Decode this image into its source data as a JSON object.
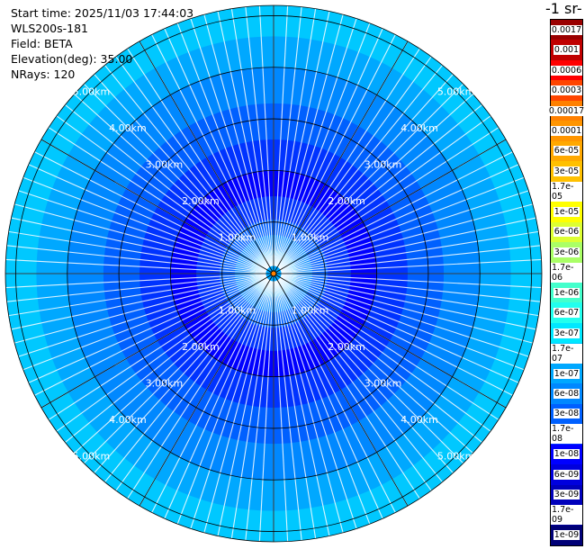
{
  "info": {
    "start_time": "Start time: 2025/11/03 17:44:03",
    "instrument": "WLS200s-181",
    "field": "Field: BETA",
    "elevation": "Elevation(deg): 35.00",
    "nrays": "NRays: 120"
  },
  "colorbar": {
    "unit_label": "-1 sr-",
    "labels": [
      "0.0017",
      "0.001",
      "0.0006",
      "0.0003",
      "0.00017",
      "0.0001",
      "6e-05",
      "3e-05",
      "1.7e-05",
      "1e-05",
      "6e-06",
      "3e-06",
      "1.7e-06",
      "1e-06",
      "6e-07",
      "3e-07",
      "1.7e-07",
      "1e-07",
      "6e-08",
      "3e-08",
      "1.7e-08",
      "1e-08",
      "6e-09",
      "3e-09",
      "1.7e-09",
      "1e-09"
    ],
    "colors": [
      "#9a0000",
      "#c00000",
      "#ff0000",
      "#ff4500",
      "#ff8000",
      "#ff9500",
      "#ffa800",
      "#ffc000",
      "#ffe000",
      "#ffff00",
      "#ddff33",
      "#aaff66",
      "#77ff99",
      "#44ffcc",
      "#22ffee",
      "#00e8ff",
      "#00c8ff",
      "#00a8ff",
      "#0088ff",
      "#0060ff",
      "#0033ff",
      "#0000ff",
      "#0000dd",
      "#0000bb",
      "#000099",
      "#000077"
    ]
  },
  "chart_data": {
    "type": "heatmap",
    "projection": "polar",
    "field": "BETA",
    "elevation_deg": 35.0,
    "nrays": 120,
    "range_rings_km": [
      1.0,
      2.0,
      3.0,
      4.0,
      5.0
    ],
    "ring_labels": [
      "1.00km",
      "2.00km",
      "3.00km",
      "4.00km",
      "5.00km"
    ],
    "max_range_km": 5.2,
    "azimuth_lines_deg": [
      0,
      30,
      60,
      90,
      120,
      150,
      180,
      210,
      240,
      270,
      300,
      330
    ],
    "bands": [
      {
        "r0_km": 0.0,
        "r1_km": 0.45,
        "beta": 1e-07
      },
      {
        "r0_km": 0.45,
        "r1_km": 0.75,
        "beta": 6e-08
      },
      {
        "r0_km": 0.75,
        "r1_km": 1.05,
        "beta": 4e-08
      },
      {
        "r0_km": 1.05,
        "r1_km": 1.5,
        "beta": 2e-08
      },
      {
        "r0_km": 1.5,
        "r1_km": 2.0,
        "beta": 1.2e-08
      },
      {
        "r0_km": 2.0,
        "r1_km": 2.6,
        "beta": 1.7e-08
      },
      {
        "r0_km": 2.6,
        "r1_km": 3.3,
        "beta": 3e-08
      },
      {
        "r0_km": 3.3,
        "r1_km": 4.0,
        "beta": 6e-08
      },
      {
        "r0_km": 4.0,
        "r1_km": 4.6,
        "beta": 1e-07
      },
      {
        "r0_km": 4.6,
        "r1_km": 5.2,
        "beta": 1.7e-07
      }
    ]
  }
}
